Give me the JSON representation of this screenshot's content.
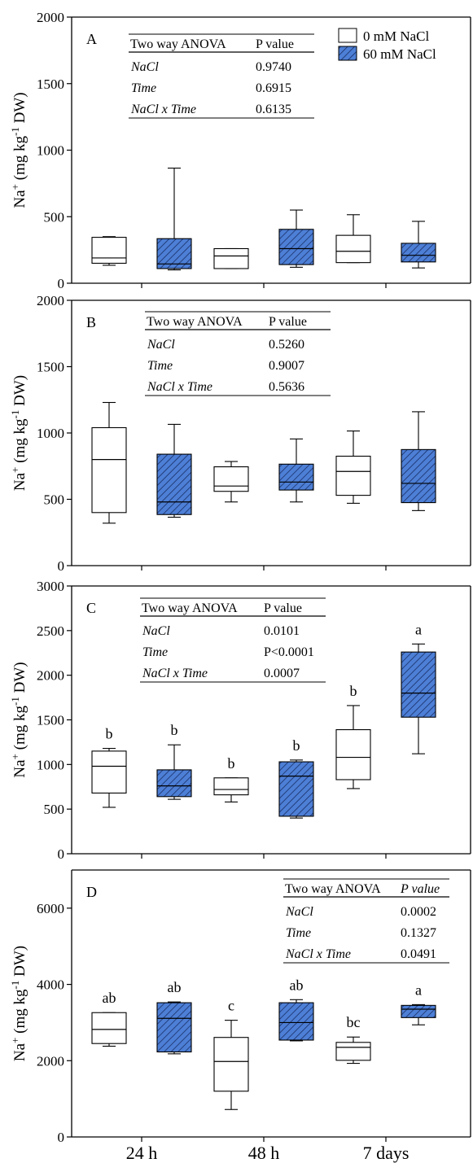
{
  "legend": {
    "items": [
      {
        "label": "0 mM NaCl",
        "fill": "#ffffff"
      },
      {
        "label": "60 mM NaCl",
        "fill": "#4d7fd6"
      }
    ]
  },
  "colors": {
    "control_fill": "#ffffff",
    "salt_fill": "#4d7fd6",
    "salt_hatch": "#1a2f66",
    "stroke": "#000000"
  },
  "x_tick_labels": [
    "24 h",
    "48 h",
    "7 days"
  ],
  "chart_data": [
    {
      "type": "boxplot",
      "panel": "A",
      "ylabel": "Na+ (mg kg-1 DW)",
      "ylim": [
        0,
        2000
      ],
      "yticks": [
        0,
        500,
        1000,
        1500,
        2000
      ],
      "categories": [
        "24 h",
        "48 h",
        "7 days"
      ],
      "series": [
        {
          "name": "0 mM NaCl",
          "boxes": [
            {
              "min": 135,
              "q1": 150,
              "median": 190,
              "q3": 345,
              "max": 350
            },
            {
              "min": 110,
              "q1": 110,
              "median": 205,
              "q3": 260,
              "max": 260
            },
            {
              "min": 155,
              "q1": 155,
              "median": 240,
              "q3": 360,
              "max": 515
            }
          ]
        },
        {
          "name": "60 mM NaCl",
          "boxes": [
            {
              "min": 100,
              "q1": 110,
              "median": 145,
              "q3": 335,
              "max": 865
            },
            {
              "min": 120,
              "q1": 140,
              "median": 260,
              "q3": 405,
              "max": 550
            },
            {
              "min": 115,
              "q1": 160,
              "median": 210,
              "q3": 300,
              "max": 465
            }
          ]
        }
      ],
      "letters": [],
      "anova": {
        "header": [
          "Two way ANOVA",
          "P value"
        ],
        "rows": [
          [
            "NaCl",
            "0.9740"
          ],
          [
            "Time",
            "0.6915"
          ],
          [
            "NaCl x Time",
            "0.6135"
          ]
        ]
      }
    },
    {
      "type": "boxplot",
      "panel": "B",
      "ylabel": "Na+ (mg kg-1 DW)",
      "ylim": [
        0,
        2000
      ],
      "yticks": [
        0,
        500,
        1000,
        1500,
        2000
      ],
      "categories": [
        "24 h",
        "48 h",
        "7 days"
      ],
      "series": [
        {
          "name": "0 mM NaCl",
          "boxes": [
            {
              "min": 320,
              "q1": 400,
              "median": 800,
              "q3": 1040,
              "max": 1230
            },
            {
              "min": 480,
              "q1": 560,
              "median": 600,
              "q3": 745,
              "max": 785
            },
            {
              "min": 470,
              "q1": 530,
              "median": 710,
              "q3": 825,
              "max": 1015
            }
          ]
        },
        {
          "name": "60 mM NaCl",
          "boxes": [
            {
              "min": 365,
              "q1": 385,
              "median": 480,
              "q3": 840,
              "max": 1065
            },
            {
              "min": 480,
              "q1": 570,
              "median": 630,
              "q3": 765,
              "max": 955
            },
            {
              "min": 415,
              "q1": 475,
              "median": 620,
              "q3": 875,
              "max": 1160
            }
          ]
        }
      ],
      "letters": [],
      "anova": {
        "header": [
          "Two way ANOVA",
          "P value"
        ],
        "rows": [
          [
            "NaCl",
            "0.5260"
          ],
          [
            "Time",
            "0.9007"
          ],
          [
            "NaCl x Time",
            "0.5636"
          ]
        ]
      }
    },
    {
      "type": "boxplot",
      "panel": "C",
      "ylabel": "Na+ (mg kg-1 DW)",
      "ylim": [
        0,
        3000
      ],
      "yticks": [
        0,
        500,
        1000,
        1500,
        2000,
        2500,
        3000
      ],
      "categories": [
        "24 h",
        "48 h",
        "7 days"
      ],
      "series": [
        {
          "name": "0 mM NaCl",
          "boxes": [
            {
              "min": 520,
              "q1": 680,
              "median": 980,
              "q3": 1150,
              "max": 1180
            },
            {
              "min": 580,
              "q1": 660,
              "median": 720,
              "q3": 850,
              "max": 850
            },
            {
              "min": 730,
              "q1": 830,
              "median": 1080,
              "q3": 1390,
              "max": 1660
            }
          ]
        },
        {
          "name": "60 mM NaCl",
          "boxes": [
            {
              "min": 610,
              "q1": 640,
              "median": 760,
              "q3": 940,
              "max": 1220
            },
            {
              "min": 400,
              "q1": 420,
              "median": 870,
              "q3": 1030,
              "max": 1050
            },
            {
              "min": 1120,
              "q1": 1530,
              "median": 1800,
              "q3": 2260,
              "max": 2350
            }
          ]
        }
      ],
      "letters": [
        [
          "b",
          "b",
          "b"
        ],
        [
          "b",
          "b",
          "a"
        ]
      ],
      "anova": {
        "header": [
          "Two way ANOVA",
          "P value"
        ],
        "rows": [
          [
            "NaCl",
            "0.0101"
          ],
          [
            "Time",
            "P<0.0001"
          ],
          [
            "NaCl x Time",
            "0.0007"
          ]
        ]
      }
    },
    {
      "type": "boxplot",
      "panel": "D",
      "ylabel": "Na+ (mg kg-1 DW)",
      "ylim": [
        0,
        7000
      ],
      "yticks": [
        0,
        2000,
        4000,
        6000
      ],
      "categories": [
        "24 h",
        "48 h",
        "7 days"
      ],
      "series": [
        {
          "name": "0 mM NaCl",
          "boxes": [
            {
              "min": 2380,
              "q1": 2450,
              "median": 2820,
              "q3": 3260,
              "max": 3260
            },
            {
              "min": 720,
              "q1": 1200,
              "median": 1980,
              "q3": 2610,
              "max": 3060
            },
            {
              "min": 1930,
              "q1": 2010,
              "median": 2350,
              "q3": 2480,
              "max": 2620
            }
          ]
        },
        {
          "name": "60 mM NaCl",
          "boxes": [
            {
              "min": 2180,
              "q1": 2230,
              "median": 3110,
              "q3": 3520,
              "max": 3540
            },
            {
              "min": 2520,
              "q1": 2540,
              "median": 3000,
              "q3": 3520,
              "max": 3600
            },
            {
              "min": 2940,
              "q1": 3130,
              "median": 3350,
              "q3": 3450,
              "max": 3470
            }
          ]
        }
      ],
      "letters": [
        [
          "ab",
          "c",
          "bc"
        ],
        [
          "ab",
          "ab",
          "a"
        ]
      ],
      "anova": {
        "header": [
          "Two way ANOVA",
          "P value"
        ],
        "rows": [
          [
            "NaCl",
            "0.0002"
          ],
          [
            "Time",
            "0.1327"
          ],
          [
            "NaCl x Time",
            "0.0491"
          ]
        ]
      }
    }
  ]
}
